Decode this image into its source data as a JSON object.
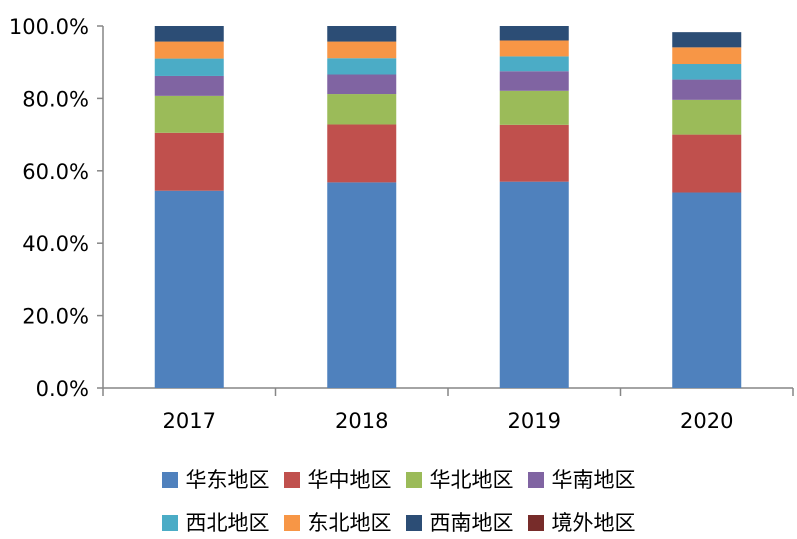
{
  "chart_data": {
    "type": "bar",
    "stacked": true,
    "categories": [
      "2017",
      "2018",
      "2019",
      "2020"
    ],
    "ylim": [
      0,
      100
    ],
    "yticks": [
      0,
      20,
      40,
      60,
      80,
      100
    ],
    "ytick_labels": [
      "0.0%",
      "20.0%",
      "40.0%",
      "60.0%",
      "80.0%",
      "100.0%"
    ],
    "legend_position": "bottom",
    "series": [
      {
        "name": "华东地区",
        "color": "#4f81bd",
        "values": [
          54.5,
          56.8,
          57.0,
          54.0
        ]
      },
      {
        "name": "华中地区",
        "color": "#c0504d",
        "values": [
          16.0,
          16.0,
          15.7,
          16.0
        ]
      },
      {
        "name": "华北地区",
        "color": "#9bbb59",
        "values": [
          10.2,
          8.4,
          9.4,
          9.6
        ]
      },
      {
        "name": "华南地区",
        "color": "#8064a2",
        "values": [
          5.5,
          5.4,
          5.4,
          5.6
        ]
      },
      {
        "name": "西北地区",
        "color": "#4bacc6",
        "values": [
          4.8,
          4.5,
          4.1,
          4.3
        ]
      },
      {
        "name": "东北地区",
        "color": "#f79646",
        "values": [
          4.7,
          4.6,
          4.4,
          4.6
        ]
      },
      {
        "name": "西南地区",
        "color": "#2c4d75",
        "values": [
          4.3,
          4.3,
          4.0,
          4.2
        ]
      },
      {
        "name": "境外地区",
        "color": "#772c2a",
        "values": [
          0.0,
          0.0,
          0.0,
          0.0
        ]
      }
    ]
  }
}
